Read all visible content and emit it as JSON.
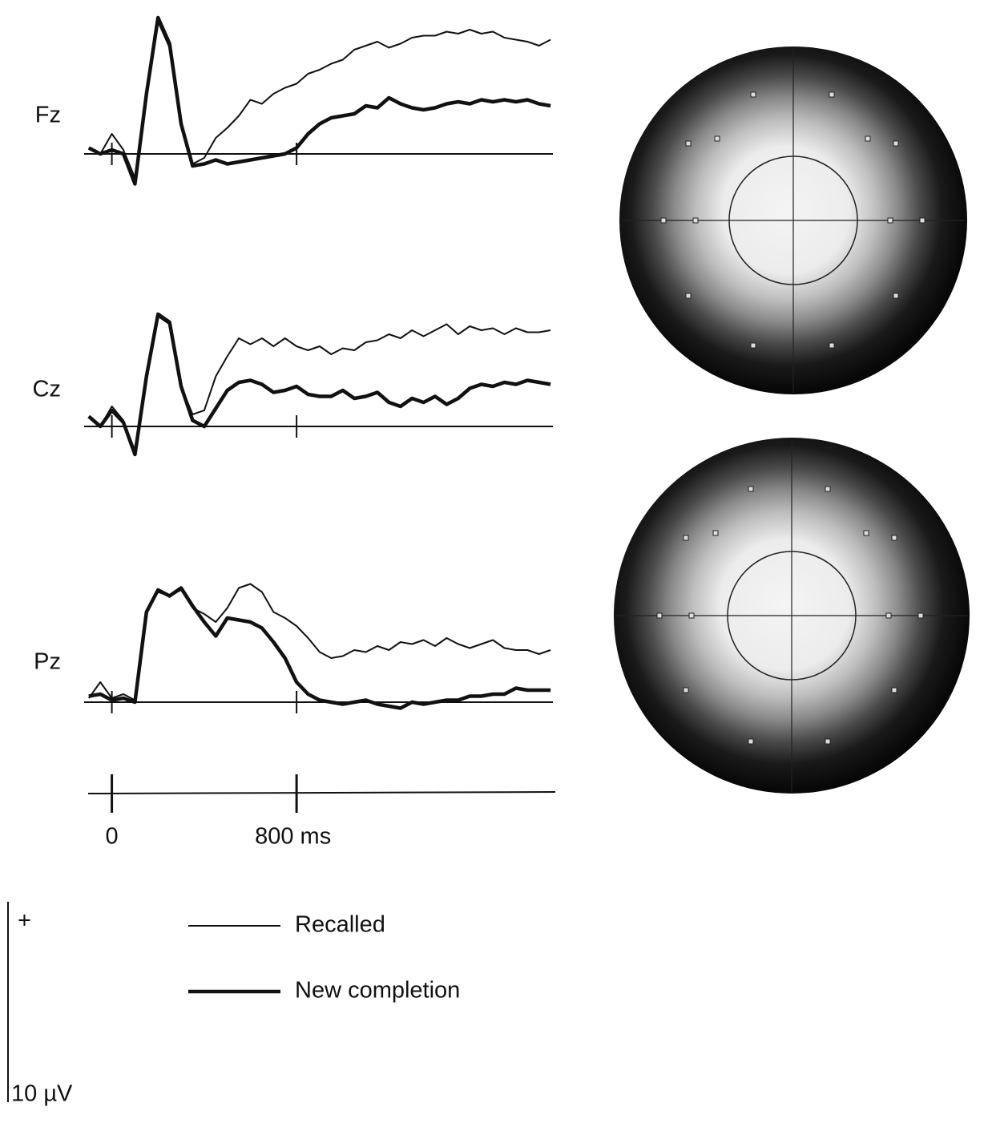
{
  "chart_data": [
    {
      "type": "line",
      "title": "Fz",
      "x": [
        -100,
        -50,
        0,
        50,
        100,
        150,
        200,
        250,
        300,
        350,
        400,
        450,
        500,
        550,
        600,
        650,
        700,
        750,
        800,
        850,
        900,
        950,
        1000,
        1050,
        1100,
        1150,
        1200,
        1250,
        1300,
        1350,
        1400,
        1450,
        1500,
        1550,
        1600,
        1650,
        1700,
        1750,
        1800,
        1850,
        1900
      ],
      "xlim": [
        -120,
        1910
      ],
      "ylim": [
        -2,
        7.2
      ],
      "xticks": [
        0,
        800
      ],
      "series": [
        {
          "name": "Recalled",
          "color": "#111111",
          "width": "thin",
          "values": [
            0.3,
            0,
            1.0,
            0.2,
            -1.2,
            2.8,
            6.6,
            5.3,
            1.4,
            -0.5,
            -0.2,
            0.8,
            1.3,
            1.9,
            2.7,
            2.5,
            3,
            3.3,
            3.5,
            4,
            4.2,
            4.5,
            4.7,
            5.2,
            5.4,
            5.6,
            5.3,
            5.5,
            5.8,
            5.9,
            5.9,
            6.1,
            6.0,
            6.2,
            6.0,
            6.1,
            5.8,
            5.7,
            5.6,
            5.4,
            5.7
          ]
        },
        {
          "name": "New completion",
          "color": "#111111",
          "width": "thick",
          "values": [
            0.3,
            0,
            0.2,
            0,
            -1.5,
            3,
            6.8,
            5.5,
            1.5,
            -0.6,
            -0.5,
            -0.3,
            -0.5,
            -0.4,
            -0.3,
            -0.2,
            -0.1,
            0,
            0.3,
            1,
            1.5,
            1.8,
            1.9,
            2,
            2.4,
            2.3,
            2.8,
            2.5,
            2.3,
            2.2,
            2.3,
            2.5,
            2.6,
            2.5,
            2.7,
            2.6,
            2.7,
            2.6,
            2.7,
            2.5,
            2.4
          ]
        }
      ]
    },
    {
      "type": "line",
      "title": "Cz",
      "x": [
        -100,
        -50,
        0,
        50,
        100,
        150,
        200,
        250,
        300,
        350,
        400,
        450,
        500,
        550,
        600,
        650,
        700,
        750,
        800,
        850,
        900,
        950,
        1000,
        1050,
        1100,
        1150,
        1200,
        1250,
        1300,
        1350,
        1400,
        1450,
        1500,
        1550,
        1600,
        1650,
        1700,
        1750,
        1800,
        1850,
        1900
      ],
      "xlim": [
        -120,
        1910
      ],
      "ylim": [
        -2,
        6.2
      ],
      "xticks": [
        0,
        800
      ],
      "series": [
        {
          "name": "Recalled",
          "color": "#111111",
          "width": "thin",
          "values": [
            0.5,
            0,
            1,
            0.3,
            -1.2,
            2.4,
            5.5,
            5.1,
            2,
            0.6,
            0.8,
            2.5,
            3.5,
            4.4,
            4.1,
            4.4,
            4.0,
            4.4,
            4.0,
            3.8,
            4.0,
            3.6,
            3.9,
            3.8,
            4.2,
            4.3,
            4.6,
            4.4,
            4.8,
            4.5,
            4.8,
            5.1,
            4.6,
            5.0,
            4.8,
            4.9,
            4.6,
            4.9,
            4.7,
            4.7,
            4.8
          ]
        },
        {
          "name": "New completion",
          "color": "#111111",
          "width": "thick",
          "values": [
            0.5,
            0,
            0.8,
            0.2,
            -1.4,
            2.5,
            5.6,
            5.2,
            2,
            0.3,
            0,
            0.9,
            1.8,
            2.2,
            2.3,
            2.1,
            1.7,
            1.8,
            2,
            1.6,
            1.5,
            1.5,
            1.8,
            1.4,
            1.5,
            1.7,
            1.2,
            1.0,
            1.4,
            1.2,
            1.5,
            1.1,
            1.4,
            1.9,
            2.1,
            2.0,
            2.2,
            2.1,
            2.3,
            2.2,
            2.1
          ]
        }
      ]
    },
    {
      "type": "line",
      "title": "Pz",
      "x": [
        -100,
        -50,
        0,
        50,
        100,
        150,
        200,
        250,
        300,
        350,
        400,
        450,
        500,
        550,
        600,
        650,
        700,
        750,
        800,
        850,
        900,
        950,
        1000,
        1050,
        1100,
        1150,
        1200,
        1250,
        1300,
        1350,
        1400,
        1450,
        1500,
        1550,
        1600,
        1650,
        1700,
        1750,
        1800,
        1850,
        1900
      ],
      "xlim": [
        -120,
        1910
      ],
      "ylim": [
        -1.2,
        6.2
      ],
      "xticks": [
        0,
        {
          "value": 800,
          "label": "800 ms"
        }
      ],
      "series": [
        {
          "name": "Recalled",
          "color": "#111111",
          "width": "thin",
          "values": [
            0.2,
            1.0,
            0.2,
            0.4,
            0.1,
            4.6,
            5.5,
            5.3,
            5.6,
            4.7,
            4.4,
            4.0,
            4.7,
            5.7,
            5.9,
            5.5,
            4.5,
            4.2,
            3.8,
            3.2,
            2.5,
            2.2,
            2.3,
            2.6,
            2.5,
            2.8,
            2.6,
            3.0,
            2.9,
            3.1,
            2.8,
            3.2,
            2.9,
            2.7,
            2.9,
            3.1,
            2.7,
            2.6,
            2.6,
            2.4,
            2.6
          ]
        },
        {
          "name": "New completion",
          "color": "#111111",
          "width": "thick",
          "values": [
            0.3,
            0.4,
            0.1,
            0.2,
            0,
            4.5,
            5.6,
            5.3,
            5.7,
            4.8,
            4.0,
            3.3,
            4.2,
            4.1,
            4.0,
            3.7,
            3.0,
            2.2,
            1.0,
            0.4,
            0.1,
            0,
            -0.1,
            0,
            0.1,
            -0.1,
            -0.2,
            -0.3,
            0,
            -0.1,
            0,
            0.1,
            0.1,
            0.3,
            0.3,
            0.4,
            0.4,
            0.7,
            0.6,
            0.6,
            0.6
          ]
        }
      ]
    }
  ],
  "scale_bar": {
    "sign": "+",
    "value": 10,
    "label": "10 µV"
  }
}
